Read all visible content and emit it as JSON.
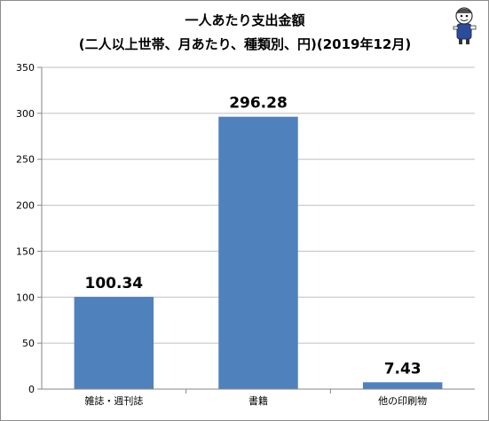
{
  "chart_data": {
    "type": "bar",
    "title_line1": "一人あたり支出金額",
    "title_line2": "(二人以上世帯、月あたり、種類別、円)(2019年12月)",
    "categories": [
      "雑誌・週刊誌",
      "書籍",
      "他の印刷物"
    ],
    "values": [
      100.34,
      296.28,
      7.43
    ],
    "value_labels": [
      "100.34",
      "296.28",
      "7.43"
    ],
    "ylim": [
      0,
      350
    ],
    "yticks": [
      0,
      50,
      100,
      150,
      200,
      250,
      300,
      350
    ],
    "grid": true,
    "legend": "none",
    "colors": {
      "bar": "#4f81bd",
      "grid": "#bfbfbf",
      "axis": "#868686"
    }
  }
}
